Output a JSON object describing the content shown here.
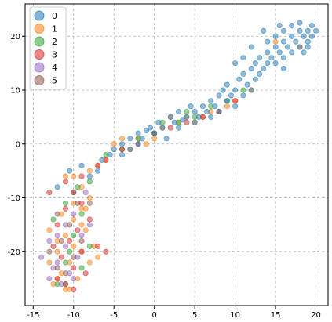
{
  "chart_data": {
    "type": "scatter",
    "title": "",
    "xlabel": "",
    "ylabel": "",
    "xlim": [
      -16,
      21.5
    ],
    "ylim": [
      -30,
      26
    ],
    "xticks": [
      -15,
      -10,
      -5,
      0,
      5,
      10,
      15,
      20
    ],
    "yticks": [
      -20,
      -10,
      0,
      10,
      20
    ],
    "grid": true,
    "legend": "top-left",
    "marker_alpha": 0.5,
    "series": [
      {
        "name": "0",
        "color": "#1f77b4",
        "points": [
          [
            -12,
            -8
          ],
          [
            -10.5,
            -5
          ],
          [
            -9,
            -4
          ],
          [
            -8,
            -6
          ],
          [
            -7,
            -5
          ],
          [
            -6.5,
            -3
          ],
          [
            -5.5,
            -2
          ],
          [
            -5,
            -1
          ],
          [
            -4,
            -2
          ],
          [
            -4,
            0
          ],
          [
            -3,
            1
          ],
          [
            -3,
            -1
          ],
          [
            -2,
            0
          ],
          [
            -2,
            2
          ],
          [
            -1.5,
            1
          ],
          [
            -1,
            2.5
          ],
          [
            -0.5,
            3
          ],
          [
            0,
            2
          ],
          [
            0.5,
            4
          ],
          [
            1,
            3
          ],
          [
            1.5,
            1
          ],
          [
            2,
            5
          ],
          [
            2.5,
            4
          ],
          [
            3,
            3
          ],
          [
            3,
            6
          ],
          [
            3.5,
            4.5
          ],
          [
            4,
            5
          ],
          [
            4.5,
            7
          ],
          [
            5,
            6
          ],
          [
            5,
            4
          ],
          [
            5.5,
            5
          ],
          [
            6,
            7
          ],
          [
            6.5,
            6
          ],
          [
            7,
            8
          ],
          [
            7,
            5
          ],
          [
            7.5,
            7
          ],
          [
            8,
            9
          ],
          [
            8,
            6
          ],
          [
            8.5,
            10
          ],
          [
            9,
            8
          ],
          [
            9,
            11
          ],
          [
            9.5,
            9
          ],
          [
            10,
            10
          ],
          [
            10,
            7
          ],
          [
            10.5,
            12
          ],
          [
            11,
            9
          ],
          [
            11,
            13
          ],
          [
            11.5,
            11
          ],
          [
            12,
            14
          ],
          [
            12,
            10
          ],
          [
            12.5,
            15
          ],
          [
            12.5,
            12
          ],
          [
            13,
            16
          ],
          [
            13,
            13
          ],
          [
            13.5,
            14
          ],
          [
            14,
            17
          ],
          [
            14,
            15
          ],
          [
            14,
            19
          ],
          [
            14.5,
            16
          ],
          [
            15,
            18
          ],
          [
            15,
            15
          ],
          [
            15,
            20
          ],
          [
            15.5,
            17
          ],
          [
            16,
            19
          ],
          [
            16,
            16
          ],
          [
            16,
            21
          ],
          [
            16.5,
            18
          ],
          [
            17,
            20
          ],
          [
            17,
            17
          ],
          [
            17,
            22
          ],
          [
            17.5,
            19
          ],
          [
            18,
            21
          ],
          [
            18,
            18
          ],
          [
            18,
            22.5
          ],
          [
            18.5,
            20
          ],
          [
            19,
            21
          ],
          [
            19,
            19
          ],
          [
            19.5,
            22
          ],
          [
            19.5,
            20
          ],
          [
            20,
            21
          ],
          [
            13.5,
            21
          ],
          [
            15.5,
            22
          ],
          [
            16,
            14
          ],
          [
            18.5,
            17
          ],
          [
            11,
            16
          ],
          [
            12,
            18
          ],
          [
            10,
            15
          ],
          [
            19,
            18
          ]
        ]
      },
      {
        "name": "1",
        "color": "#ff7f0e",
        "points": [
          [
            -13,
            -22
          ],
          [
            -12.5,
            -26
          ],
          [
            -12,
            -20
          ],
          [
            -11.5,
            -24
          ],
          [
            -11,
            -17
          ],
          [
            -11,
            -27
          ],
          [
            -10.5,
            -22
          ],
          [
            -10,
            -14
          ],
          [
            -10,
            -19
          ],
          [
            -9.5,
            -25
          ],
          [
            -9,
            -12
          ],
          [
            -9,
            -20
          ],
          [
            -8.5,
            -16
          ],
          [
            -8,
            -22
          ],
          [
            -8,
            -10
          ],
          [
            -7.5,
            -19
          ],
          [
            -7,
            -21
          ],
          [
            -11,
            -6
          ],
          [
            -10,
            -6
          ],
          [
            -9,
            -8
          ],
          [
            -8,
            -5
          ],
          [
            -7,
            -4
          ],
          [
            -6,
            -3
          ],
          [
            -5,
            0
          ],
          [
            -4,
            1
          ],
          [
            -3,
            -1
          ],
          [
            -2,
            1
          ],
          [
            -1,
            0
          ],
          [
            0,
            1
          ],
          [
            1,
            3
          ],
          [
            2,
            5
          ],
          [
            3,
            4
          ],
          [
            4,
            5
          ],
          [
            5,
            4
          ],
          [
            6,
            5
          ],
          [
            7,
            6
          ],
          [
            8,
            6
          ],
          [
            9,
            7
          ],
          [
            10,
            8
          ],
          [
            12,
            10
          ],
          [
            15,
            19
          ],
          [
            18,
            18
          ],
          [
            -11.5,
            -13
          ],
          [
            -10,
            -11
          ],
          [
            -9,
            -15
          ],
          [
            -12,
            -18
          ],
          [
            -8.5,
            -12
          ],
          [
            -13,
            -16
          ],
          [
            -10.5,
            -27
          ],
          [
            -12,
            -25
          ]
        ]
      },
      {
        "name": "2",
        "color": "#2ca02c",
        "points": [
          [
            -12,
            -26
          ],
          [
            -11,
            -22
          ],
          [
            -10,
            -17
          ],
          [
            -9,
            -13
          ],
          [
            -8,
            -19
          ],
          [
            -11,
            -11
          ],
          [
            -9.5,
            -8
          ],
          [
            -8,
            -7
          ],
          [
            -6,
            -2
          ],
          [
            -4,
            -1
          ],
          [
            -2,
            1
          ],
          [
            0,
            2
          ],
          [
            1,
            4
          ],
          [
            3,
            4
          ],
          [
            4,
            6
          ],
          [
            5,
            5
          ],
          [
            7,
            7
          ],
          [
            9,
            8
          ],
          [
            11,
            10
          ],
          [
            -12.5,
            -14
          ],
          [
            -10.5,
            -20
          ],
          [
            -9,
            -23
          ]
        ]
      },
      {
        "name": "3",
        "color": "#d62728",
        "points": [
          [
            -13,
            -9
          ],
          [
            -12,
            -25
          ],
          [
            -12,
            -15
          ],
          [
            -11.5,
            -21
          ],
          [
            -11,
            -26
          ],
          [
            -11,
            -12
          ],
          [
            -10.5,
            -18
          ],
          [
            -10,
            -23
          ],
          [
            -10,
            -9
          ],
          [
            -9.5,
            -16
          ],
          [
            -9,
            -20
          ],
          [
            -9,
            -11
          ],
          [
            -8.5,
            -24
          ],
          [
            -8,
            -14
          ],
          [
            -7,
            -19
          ],
          [
            -6,
            -20
          ],
          [
            -11,
            -7
          ],
          [
            -9,
            -6
          ],
          [
            -7,
            -4
          ],
          [
            -6,
            -3
          ],
          [
            -4,
            -1
          ],
          [
            -2,
            0
          ],
          [
            0,
            2
          ],
          [
            2,
            3
          ],
          [
            4,
            4
          ],
          [
            6,
            5
          ],
          [
            8,
            6
          ],
          [
            10,
            8
          ],
          [
            -12.5,
            -19
          ],
          [
            -10,
            -27
          ]
        ]
      },
      {
        "name": "4",
        "color": "#9467bd",
        "points": [
          [
            -14,
            -21
          ],
          [
            -13,
            -18
          ],
          [
            -12.5,
            -23
          ],
          [
            -12,
            -17
          ],
          [
            -11.5,
            -26
          ],
          [
            -11,
            -19
          ],
          [
            -10.5,
            -24
          ],
          [
            -10,
            -13
          ],
          [
            -9.5,
            -21
          ],
          [
            -9,
            -17
          ],
          [
            -8.5,
            -9
          ],
          [
            -8,
            -15
          ],
          [
            -13,
            -25
          ],
          [
            -11,
            -15
          ],
          [
            -10,
            -25
          ],
          [
            -12,
            -22
          ]
        ]
      },
      {
        "name": "5",
        "color": "#8c564b",
        "points": [
          [
            -13,
            -20
          ],
          [
            -12,
            -23
          ],
          [
            -11.5,
            -18
          ],
          [
            -11,
            -24
          ],
          [
            -10.5,
            -15
          ],
          [
            -10,
            -21
          ],
          [
            -9.5,
            -11
          ],
          [
            -9,
            -18
          ],
          [
            -8,
            -11
          ],
          [
            -12,
            -13
          ],
          [
            -10,
            -9
          ],
          [
            -11,
            -26
          ]
        ]
      }
    ]
  }
}
